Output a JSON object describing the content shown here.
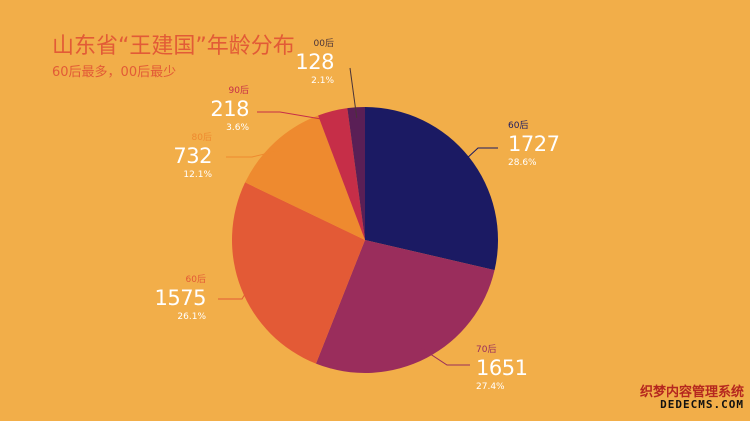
{
  "page": {
    "title": "山东省“王建国”年龄分布",
    "subtitle": "60后最多，00后最少",
    "watermark_line1": "织梦内容管理系统",
    "watermark_line2": "DEDECMS.COM"
  },
  "colors": {
    "background": "#F2AE49",
    "title": "#E25B36"
  },
  "chart_data": {
    "type": "pie",
    "title": "山东省“王建国”年龄分布",
    "subtitle": "60后最多，00后最少",
    "start_angle": "12 o'clock",
    "direction": "clockwise",
    "slices": [
      {
        "label": "60后",
        "value": 1727,
        "percent": "28.6%",
        "color": "#1B1A63",
        "label_color": "#1B1A63"
      },
      {
        "label": "70后",
        "value": 1651,
        "percent": "27.4%",
        "color": "#9A2D5C",
        "label_color": "#9A2D5C"
      },
      {
        "label": "60后",
        "value": 1575,
        "percent": "26.1%",
        "color": "#E35A36",
        "label_color": "#E35A36"
      },
      {
        "label": "80后",
        "value": 732,
        "percent": "12.1%",
        "color": "#EE8A2F",
        "label_color": "#EE8A2F"
      },
      {
        "label": "90后",
        "value": 218,
        "percent": "3.6%",
        "color": "#C62E48",
        "label_color": "#C62E48"
      },
      {
        "label": "00后",
        "value": 128,
        "percent": "2.1%",
        "color": "#5A1F56",
        "label_color": "#4A3338"
      }
    ]
  }
}
